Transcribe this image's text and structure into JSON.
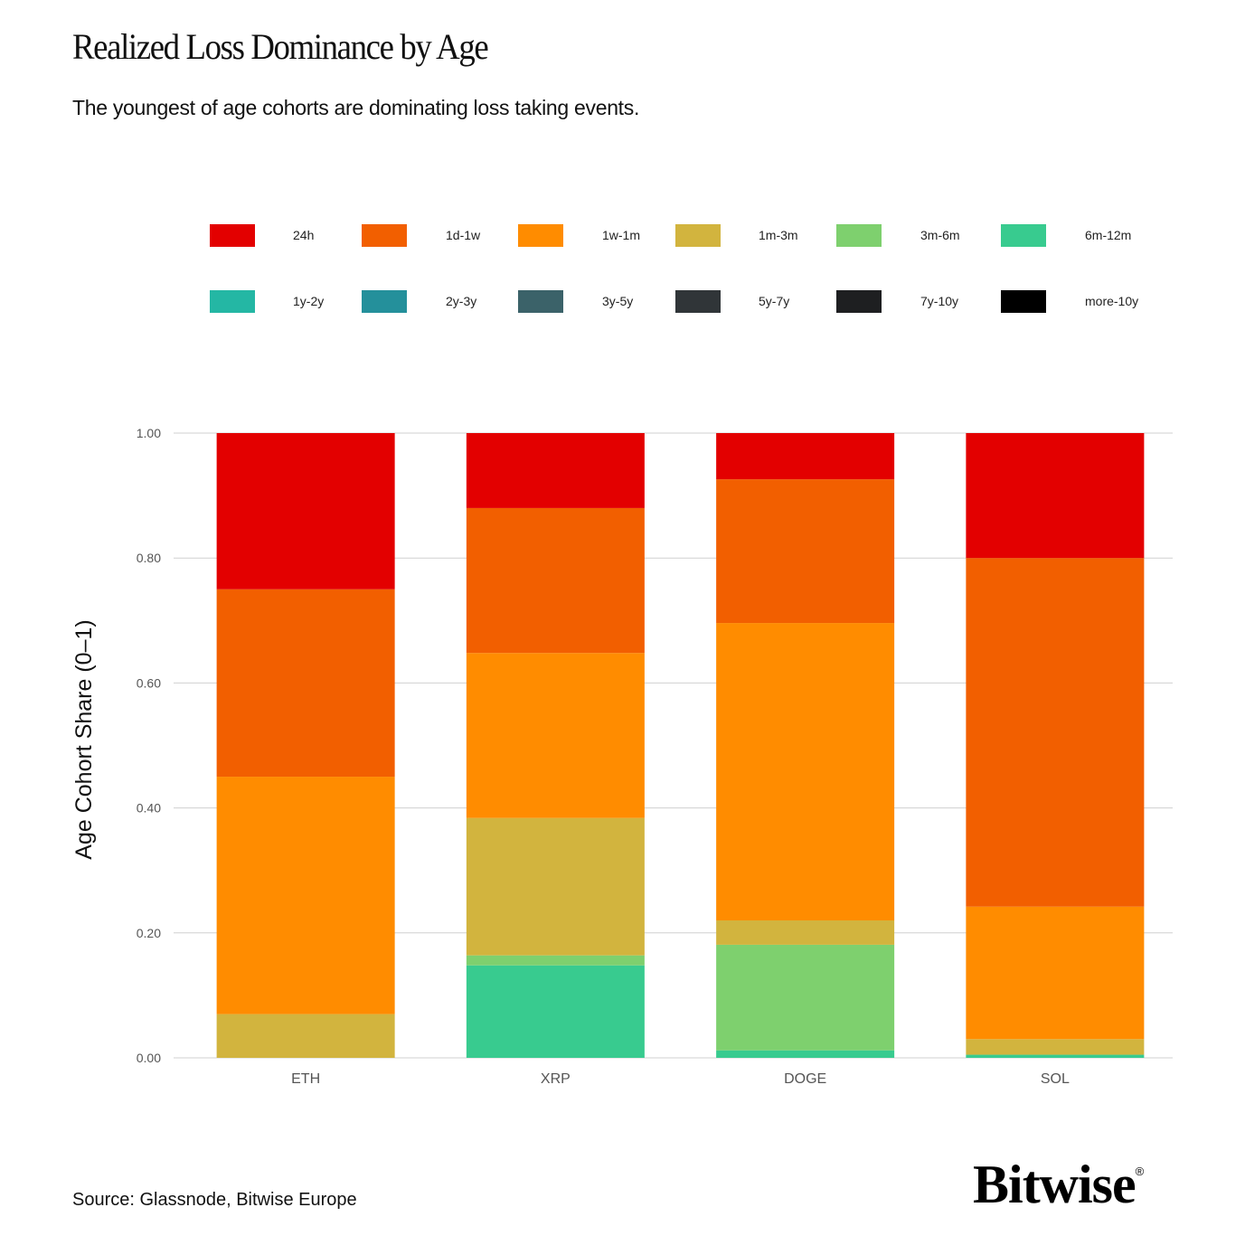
{
  "header": {
    "title": "Realized Loss Dominance by Age",
    "subtitle": "The youngest of age cohorts are dominating loss taking events."
  },
  "footer": {
    "source": "Source: Glassnode, Bitwise Europe",
    "logo_text": "Bitwise",
    "logo_mark": "®"
  },
  "chart_data": {
    "type": "bar",
    "stacked": true,
    "title": "Realized Loss Dominance by Age",
    "subtitle": "The youngest of age cohorts are dominating loss taking events.",
    "xlabel": "",
    "ylabel": "Age Cohort Share (0–1)",
    "ylim": [
      0,
      1
    ],
    "yticks": [
      "0.00",
      "0.20",
      "0.40",
      "0.60",
      "0.80",
      "1.00"
    ],
    "ytick_values": [
      0,
      0.2,
      0.4,
      0.6,
      0.8,
      1.0
    ],
    "grid": true,
    "legend_position": "top",
    "categories": [
      "ETH",
      "XRP",
      "DOGE",
      "SOL"
    ],
    "series": [
      {
        "name": "24h",
        "color": "#e30000",
        "values": [
          0.25,
          0.12,
          0.074,
          0.2
        ]
      },
      {
        "name": "1d-1w",
        "color": "#f25f00",
        "values": [
          0.3,
          0.232,
          0.23,
          0.558
        ]
      },
      {
        "name": "1w-1m",
        "color": "#ff8c00",
        "values": [
          0.38,
          0.264,
          0.476,
          0.212
        ]
      },
      {
        "name": "1m-3m",
        "color": "#d2b43e",
        "values": [
          0.07,
          0.22,
          0.039,
          0.025
        ]
      },
      {
        "name": "3m-6m",
        "color": "#7ed06e",
        "values": [
          0.0,
          0.016,
          0.169,
          0.0
        ]
      },
      {
        "name": "6m-12m",
        "color": "#38cb8f",
        "values": [
          0.0,
          0.148,
          0.012,
          0.005
        ]
      },
      {
        "name": "1y-2y",
        "color": "#24b7a4",
        "values": [
          0,
          0,
          0,
          0
        ]
      },
      {
        "name": "2y-3y",
        "color": "#24909b",
        "values": [
          0,
          0,
          0,
          0
        ]
      },
      {
        "name": "3y-5y",
        "color": "#3b6269",
        "values": [
          0,
          0,
          0,
          0
        ]
      },
      {
        "name": "5y-7y",
        "color": "#303538",
        "values": [
          0,
          0,
          0,
          0
        ]
      },
      {
        "name": "7y-10y",
        "color": "#1e1f21",
        "values": [
          0,
          0,
          0,
          0
        ]
      },
      {
        "name": "more-10y",
        "color": "#000000",
        "values": [
          0,
          0,
          0,
          0
        ]
      }
    ]
  }
}
